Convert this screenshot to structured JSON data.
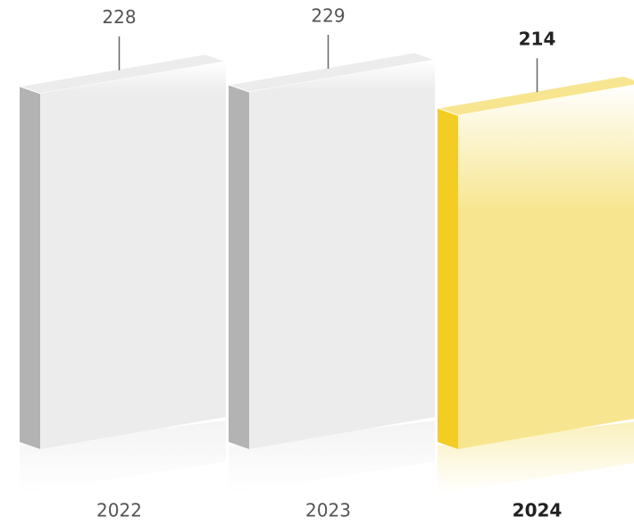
{
  "chart_data": {
    "type": "bar3d",
    "categories": [
      "2022",
      "2023",
      "2024"
    ],
    "values": [
      228,
      229,
      214
    ],
    "colors": [
      "#ececec",
      "#ececec",
      "#f7e68f"
    ],
    "side_colors": [
      "#b3b3b3",
      "#b3b3b3",
      "#f3cd22"
    ],
    "highlight": 2
  }
}
